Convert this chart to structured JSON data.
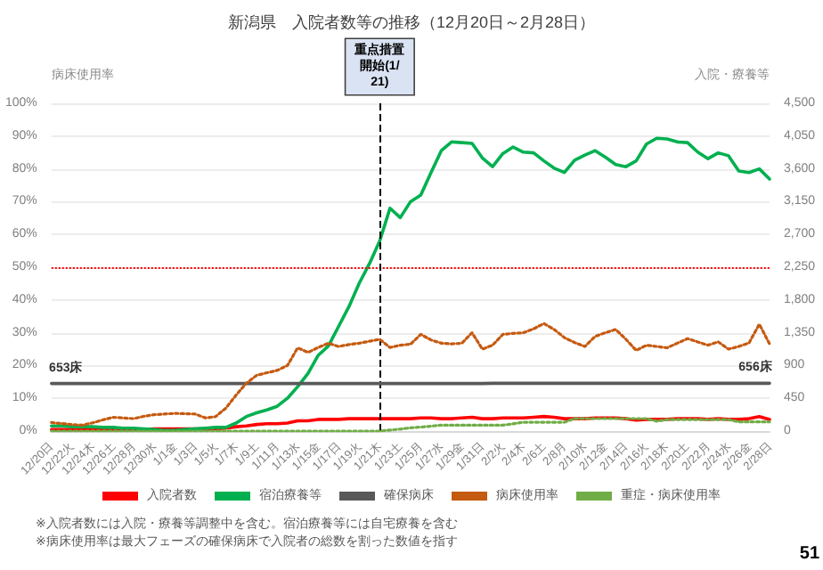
{
  "chart_data": {
    "type": "line",
    "title": "新潟県　入院者数等の推移（12月20日～2月28日）",
    "ylabel": "病床使用率",
    "y2label": "入院・療養等",
    "categories": [
      "12/20日",
      null,
      "12/22火",
      null,
      "12/24木",
      null,
      "12/26土",
      null,
      "12/28月",
      null,
      "12/30水",
      null,
      "1/1金",
      null,
      "1/3日",
      null,
      "1/5火",
      null,
      "1/7木",
      null,
      "1/9土",
      null,
      "1/11月",
      null,
      "1/13水",
      null,
      "1/15金",
      null,
      "1/17日",
      null,
      "1/19火",
      null,
      "1/21木",
      null,
      "1/23土",
      null,
      "1/25月",
      null,
      "1/27水",
      null,
      "1/29金",
      null,
      "1/31日",
      null,
      "2/2火",
      null,
      "2/4木",
      null,
      "2/6土",
      null,
      "2/8月",
      null,
      "2/10水",
      null,
      "2/12金",
      null,
      "2/14日",
      null,
      "2/16火",
      null,
      "2/18木",
      null,
      "2/20土",
      null,
      "2/22月",
      null,
      "2/24水",
      null,
      "2/26金",
      null,
      "2/28日"
    ],
    "series": [
      {
        "name": "入院者数",
        "color": "#ff0000",
        "axis": "y2",
        "line_style": "solid",
        "values": [
          20,
          20,
          20,
          20,
          20,
          20,
          20,
          20,
          20,
          20,
          30,
          30,
          30,
          30,
          30,
          30,
          30,
          40,
          60,
          70,
          90,
          100,
          100,
          110,
          140,
          140,
          160,
          160,
          160,
          170,
          170,
          170,
          170,
          170,
          170,
          170,
          180,
          180,
          170,
          170,
          180,
          190,
          170,
          170,
          180,
          180,
          180,
          190,
          200,
          190,
          170,
          170,
          170,
          180,
          180,
          180,
          170,
          150,
          160,
          160,
          160,
          170,
          170,
          170,
          160,
          170,
          160,
          160,
          170,
          200,
          160
        ]
      },
      {
        "name": "宿泊療養等",
        "color": "#00b050",
        "axis": "y2",
        "line_style": "solid",
        "values": [
          70,
          70,
          60,
          60,
          60,
          50,
          50,
          40,
          40,
          30,
          20,
          10,
          10,
          20,
          30,
          40,
          50,
          50,
          110,
          200,
          250,
          290,
          340,
          450,
          610,
          790,
          1040,
          1170,
          1440,
          1710,
          2030,
          2300,
          2610,
          3060,
          2930,
          3150,
          3240,
          3550,
          3850,
          3970,
          3960,
          3950,
          3750,
          3630,
          3810,
          3900,
          3830,
          3820,
          3710,
          3610,
          3550,
          3720,
          3790,
          3850,
          3760,
          3660,
          3630,
          3710,
          3940,
          4020,
          4010,
          3970,
          3960,
          3830,
          3740,
          3820,
          3780,
          3570,
          3550,
          3600,
          3460
        ]
      },
      {
        "name": "確保病床",
        "color": "#595959",
        "axis": "y2",
        "line_style": "solid",
        "values": [
          653,
          653,
          653,
          653,
          653,
          653,
          653,
          653,
          653,
          653,
          653,
          653,
          653,
          653,
          653,
          653,
          653,
          653,
          653,
          653,
          653,
          653,
          653,
          653,
          653,
          653,
          653,
          653,
          653,
          653,
          653,
          653,
          653,
          653,
          653,
          653,
          653,
          653,
          653,
          653,
          653,
          653,
          653,
          656,
          656,
          656,
          656,
          656,
          656,
          656,
          656,
          656,
          656,
          656,
          656,
          656,
          656,
          656,
          656,
          656,
          656,
          656,
          656,
          656,
          656,
          656,
          656,
          656,
          656,
          656,
          656
        ],
        "value_labels": [
          "653床",
          null,
          null,
          null,
          null,
          null,
          null,
          null,
          null,
          null,
          null,
          null,
          null,
          null,
          null,
          null,
          null,
          null,
          null,
          null,
          null,
          null,
          null,
          null,
          null,
          null,
          null,
          null,
          null,
          null,
          null,
          null,
          null,
          null,
          null,
          null,
          null,
          null,
          null,
          null,
          null,
          null,
          null,
          null,
          null,
          null,
          null,
          null,
          null,
          null,
          null,
          null,
          null,
          null,
          null,
          null,
          null,
          null,
          null,
          null,
          null,
          null,
          null,
          null,
          null,
          null,
          null,
          null,
          null,
          null,
          "656床"
        ]
      },
      {
        "name": "病床使用率",
        "color": "#c55a11",
        "line_style": "dotted",
        "values": [
          2.6,
          2.3,
          2.0,
          1.8,
          2.5,
          3.4,
          4.2,
          4.0,
          3.8,
          4.5,
          5.0,
          5.2,
          5.4,
          5.3,
          5.2,
          4.0,
          4.4,
          7.0,
          11.0,
          14.6,
          17.0,
          17.8,
          18.5,
          20.0,
          25.4,
          24.0,
          25.5,
          26.8,
          25.8,
          26.4,
          26.8,
          27.4,
          28.0,
          25.5,
          26.2,
          26.5,
          29.5,
          27.8,
          26.8,
          26.6,
          26.8,
          30.0,
          25.0,
          26.2,
          29.5,
          29.8,
          30.0,
          31.2,
          32.8,
          31.0,
          28.5,
          27.0,
          25.8,
          28.9,
          30.0,
          31.0,
          28.0,
          24.6,
          26.2,
          25.8,
          25.4,
          26.8,
          28.2,
          27.2,
          26.2,
          27.2,
          25.0,
          25.8,
          26.9,
          32.6,
          26.6
        ]
      },
      {
        "name": "重症・病床使用率",
        "color": "#70ad47",
        "line_style": "dotted",
        "values": [
          0,
          0,
          0,
          0,
          0,
          0,
          0,
          0,
          0,
          0,
          0,
          0,
          0,
          0,
          0,
          0,
          0,
          0,
          0,
          0,
          0,
          0,
          0,
          0,
          0,
          0,
          0,
          0,
          0,
          0,
          0,
          0,
          0,
          0.3,
          0.6,
          1.0,
          1.2,
          1.5,
          1.8,
          1.8,
          1.8,
          1.8,
          1.8,
          1.8,
          1.8,
          2.2,
          2.7,
          2.7,
          2.7,
          2.7,
          2.7,
          3.8,
          3.8,
          3.8,
          3.8,
          3.8,
          3.8,
          3.8,
          3.8,
          3.0,
          3.5,
          3.5,
          3.5,
          3.5,
          3.5,
          3.5,
          3.5,
          2.8,
          2.8,
          2.8,
          2.8
        ]
      }
    ],
    "ylim": [
      0,
      100
    ],
    "yticks": [
      {
        "value": 0,
        "label": "0%"
      },
      {
        "value": 10,
        "label": "10%"
      },
      {
        "value": 20,
        "label": "20%"
      },
      {
        "value": 30,
        "label": "30%"
      },
      {
        "value": 40,
        "label": "40%"
      },
      {
        "value": 50,
        "label": "50%"
      },
      {
        "value": 60,
        "label": "60%"
      },
      {
        "value": 70,
        "label": "70%"
      },
      {
        "value": 80,
        "label": "80%"
      },
      {
        "value": 90,
        "label": "90%"
      },
      {
        "value": 100,
        "label": "100%"
      }
    ],
    "y2lim": [
      0,
      4500
    ],
    "y2ticks": [
      0,
      450,
      900,
      {
        "value": 1350,
        "label": "1,350"
      },
      {
        "value": 1800,
        "label": "1,800"
      },
      {
        "value": 2250,
        "label": "2,250"
      },
      {
        "value": 2700,
        "label": "2,700"
      },
      {
        "value": 3150,
        "label": "3,150"
      },
      {
        "value": 3600,
        "label": "3,600"
      },
      {
        "value": 4050,
        "label": "4,050"
      },
      {
        "value": 4500,
        "label": "4,500"
      }
    ],
    "ref_lines": [
      {
        "axis": "y",
        "value": 50,
        "color": "#ff0000",
        "line_style": "dotted"
      },
      {
        "axis": "x",
        "value": "1/21木",
        "label": "重点措置開始(1/21)",
        "color": "#000000",
        "line_style": "dashed"
      }
    ],
    "grid": "y",
    "legend": "bottom",
    "marker": "none",
    "annotations": [
      "※入院者数には入院・療養等調整中を含む。宿泊療養等には自宅療養を含む",
      "※病床使用率は最大フェーズの確保病床で入院者の総数を割った数値を指す",
      "51"
    ]
  }
}
